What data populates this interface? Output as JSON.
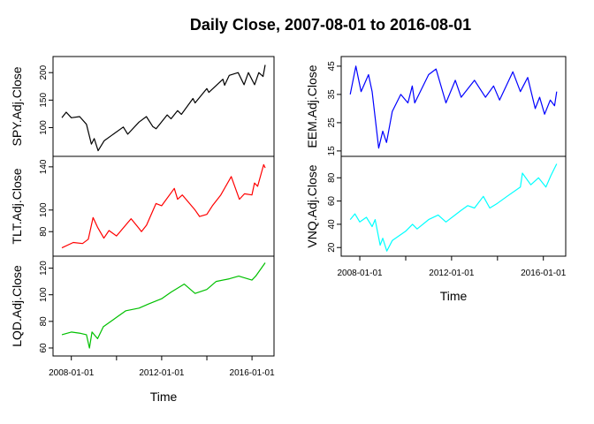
{
  "chart_data": {
    "type": "line",
    "title": "Daily Close, 2007-08-01 to 2016-08-01",
    "xlabel": "Time",
    "x_tick_labels": [
      "2008-01-01",
      "2012-01-01",
      "2016-01-01"
    ],
    "x_range": [
      "2007-08-01",
      "2016-08-01"
    ],
    "grid": false,
    "legend": "none",
    "columns": [
      {
        "panels": [
          {
            "series": "SPY.Adj.Close",
            "color": "#000000",
            "ylim": [
              55,
              222
            ],
            "yticks": [
              100,
              150,
              200
            ],
            "points": [
              [
                "2007-08-01",
                118
              ],
              [
                "2007-10-10",
                128
              ],
              [
                "2008-01-01",
                118
              ],
              [
                "2008-05-15",
                120
              ],
              [
                "2008-09-01",
                106
              ],
              [
                "2008-11-20",
                70
              ],
              [
                "2009-01-05",
                80
              ],
              [
                "2009-03-09",
                58
              ],
              [
                "2009-06-15",
                76
              ],
              [
                "2009-10-15",
                86
              ],
              [
                "2010-04-20",
                101
              ],
              [
                "2010-07-01",
                88
              ],
              [
                "2010-12-31",
                110
              ],
              [
                "2011-04-29",
                120
              ],
              [
                "2011-08-10",
                102
              ],
              [
                "2011-10-03",
                98
              ],
              [
                "2012-03-30",
                123
              ],
              [
                "2012-06-01",
                116
              ],
              [
                "2012-09-14",
                131
              ],
              [
                "2012-11-15",
                124
              ],
              [
                "2013-05-21",
                153
              ],
              [
                "2013-06-24",
                145
              ],
              [
                "2013-12-31",
                171
              ],
              [
                "2014-02-03",
                164
              ],
              [
                "2014-09-18",
                188
              ],
              [
                "2014-10-15",
                177
              ],
              [
                "2014-12-29",
                195
              ],
              [
                "2015-05-21",
                200
              ],
              [
                "2015-08-25",
                178
              ],
              [
                "2015-11-03",
                200
              ],
              [
                "2016-02-11",
                178
              ],
              [
                "2016-04-20",
                200
              ],
              [
                "2016-06-27",
                193
              ],
              [
                "2016-08-01",
                214
              ]
            ]
          },
          {
            "series": "TLT.Adj.Close",
            "color": "#ff0000",
            "ylim": [
              61,
              146
            ],
            "yticks": [
              80,
              100,
              140
            ],
            "points": [
              [
                "2007-08-01",
                65
              ],
              [
                "2008-02-01",
                70
              ],
              [
                "2008-07-01",
                69
              ],
              [
                "2008-10-01",
                73
              ],
              [
                "2008-12-18",
                93
              ],
              [
                "2009-03-01",
                84
              ],
              [
                "2009-06-10",
                74
              ],
              [
                "2009-09-01",
                81
              ],
              [
                "2009-12-31",
                76
              ],
              [
                "2010-08-25",
                92
              ],
              [
                "2010-12-31",
                83
              ],
              [
                "2011-02-08",
                80
              ],
              [
                "2011-05-01",
                86
              ],
              [
                "2011-10-01",
                106
              ],
              [
                "2012-01-01",
                104
              ],
              [
                "2012-07-24",
                120
              ],
              [
                "2012-09-14",
                110
              ],
              [
                "2012-12-01",
                114
              ],
              [
                "2013-06-25",
                100
              ],
              [
                "2013-09-05",
                94
              ],
              [
                "2013-12-31",
                96
              ],
              [
                "2014-04-01",
                104
              ],
              [
                "2014-08-15",
                114
              ],
              [
                "2015-01-30",
                131
              ],
              [
                "2015-06-10",
                110
              ],
              [
                "2015-09-01",
                115
              ],
              [
                "2015-12-31",
                114
              ],
              [
                "2016-02-10",
                125
              ],
              [
                "2016-04-01",
                122
              ],
              [
                "2016-07-08",
                142
              ],
              [
                "2016-08-01",
                139
              ]
            ]
          },
          {
            "series": "LQD.Adj.Close",
            "color": "#00c000",
            "ylim": [
              57,
              126
            ],
            "yticks": [
              60,
              80,
              100,
              120
            ],
            "points": [
              [
                "2007-08-01",
                70
              ],
              [
                "2008-01-01",
                72
              ],
              [
                "2008-06-01",
                71
              ],
              [
                "2008-09-01",
                70
              ],
              [
                "2008-10-20",
                60
              ],
              [
                "2008-12-01",
                72
              ],
              [
                "2009-03-01",
                67
              ],
              [
                "2009-06-01",
                76
              ],
              [
                "2009-12-31",
                83
              ],
              [
                "2010-06-01",
                88
              ],
              [
                "2010-12-31",
                90
              ],
              [
                "2011-06-01",
                93
              ],
              [
                "2011-12-31",
                97
              ],
              [
                "2012-06-01",
                102
              ],
              [
                "2012-12-31",
                108
              ],
              [
                "2013-06-25",
                101
              ],
              [
                "2013-12-31",
                104
              ],
              [
                "2014-06-01",
                110
              ],
              [
                "2014-12-31",
                112
              ],
              [
                "2015-06-01",
                114
              ],
              [
                "2015-12-31",
                111
              ],
              [
                "2016-03-01",
                114
              ],
              [
                "2016-08-01",
                124
              ]
            ]
          }
        ]
      },
      {
        "panels": [
          {
            "series": "EEM.Adj.Close",
            "color": "#0000ff",
            "ylim": [
              14.5,
              47
            ],
            "yticks": [
              15,
              25,
              35,
              45
            ],
            "points": [
              [
                "2007-08-01",
                35
              ],
              [
                "2007-10-31",
                45
              ],
              [
                "2008-01-22",
                36
              ],
              [
                "2008-05-19",
                42
              ],
              [
                "2008-07-15",
                36
              ],
              [
                "2008-10-27",
                16
              ],
              [
                "2008-12-31",
                22
              ],
              [
                "2009-03-02",
                18
              ],
              [
                "2009-06-01",
                29
              ],
              [
                "2009-10-15",
                35
              ],
              [
                "2010-02-05",
                32
              ],
              [
                "2010-04-15",
                38
              ],
              [
                "2010-05-25",
                32
              ],
              [
                "2010-12-31",
                42
              ],
              [
                "2011-04-29",
                44
              ],
              [
                "2011-10-03",
                32
              ],
              [
                "2012-03-01",
                40
              ],
              [
                "2012-06-01",
                34
              ],
              [
                "2012-12-31",
                40
              ],
              [
                "2013-06-24",
                34
              ],
              [
                "2013-10-31",
                38
              ],
              [
                "2014-02-03",
                33
              ],
              [
                "2014-09-03",
                43
              ],
              [
                "2014-12-31",
                36
              ],
              [
                "2015-04-27",
                41
              ],
              [
                "2015-08-24",
                30
              ],
              [
                "2015-11-03",
                34
              ],
              [
                "2016-01-20",
                28
              ],
              [
                "2016-04-20",
                33
              ],
              [
                "2016-06-27",
                31
              ],
              [
                "2016-08-01",
                36
              ]
            ]
          },
          {
            "series": "VNQ.Adj.Close",
            "color": "#00ffff",
            "ylim": [
              16,
              95
            ],
            "yticks": [
              20,
              40,
              60,
              80
            ],
            "points": [
              [
                "2007-08-01",
                44
              ],
              [
                "2007-10-15",
                49
              ],
              [
                "2008-01-01",
                42
              ],
              [
                "2008-04-15",
                46
              ],
              [
                "2008-07-15",
                38
              ],
              [
                "2008-09-01",
                44
              ],
              [
                "2008-11-20",
                22
              ],
              [
                "2008-12-31",
                28
              ],
              [
                "2009-03-06",
                17
              ],
              [
                "2009-06-01",
                26
              ],
              [
                "2009-12-31",
                34
              ],
              [
                "2010-04-20",
                40
              ],
              [
                "2010-07-01",
                36
              ],
              [
                "2010-12-31",
                44
              ],
              [
                "2011-06-01",
                48
              ],
              [
                "2011-10-03",
                42
              ],
              [
                "2012-06-01",
                52
              ],
              [
                "2012-09-15",
                56
              ],
              [
                "2012-12-31",
                54
              ],
              [
                "2013-05-21",
                64
              ],
              [
                "2013-09-01",
                54
              ],
              [
                "2013-12-31",
                58
              ],
              [
                "2014-06-01",
                64
              ],
              [
                "2014-12-31",
                72
              ],
              [
                "2015-02-01",
                84
              ],
              [
                "2015-06-15",
                74
              ],
              [
                "2015-10-15",
                80
              ],
              [
                "2016-02-11",
                72
              ],
              [
                "2016-05-01",
                82
              ],
              [
                "2016-08-01",
                92
              ]
            ]
          }
        ]
      }
    ]
  }
}
